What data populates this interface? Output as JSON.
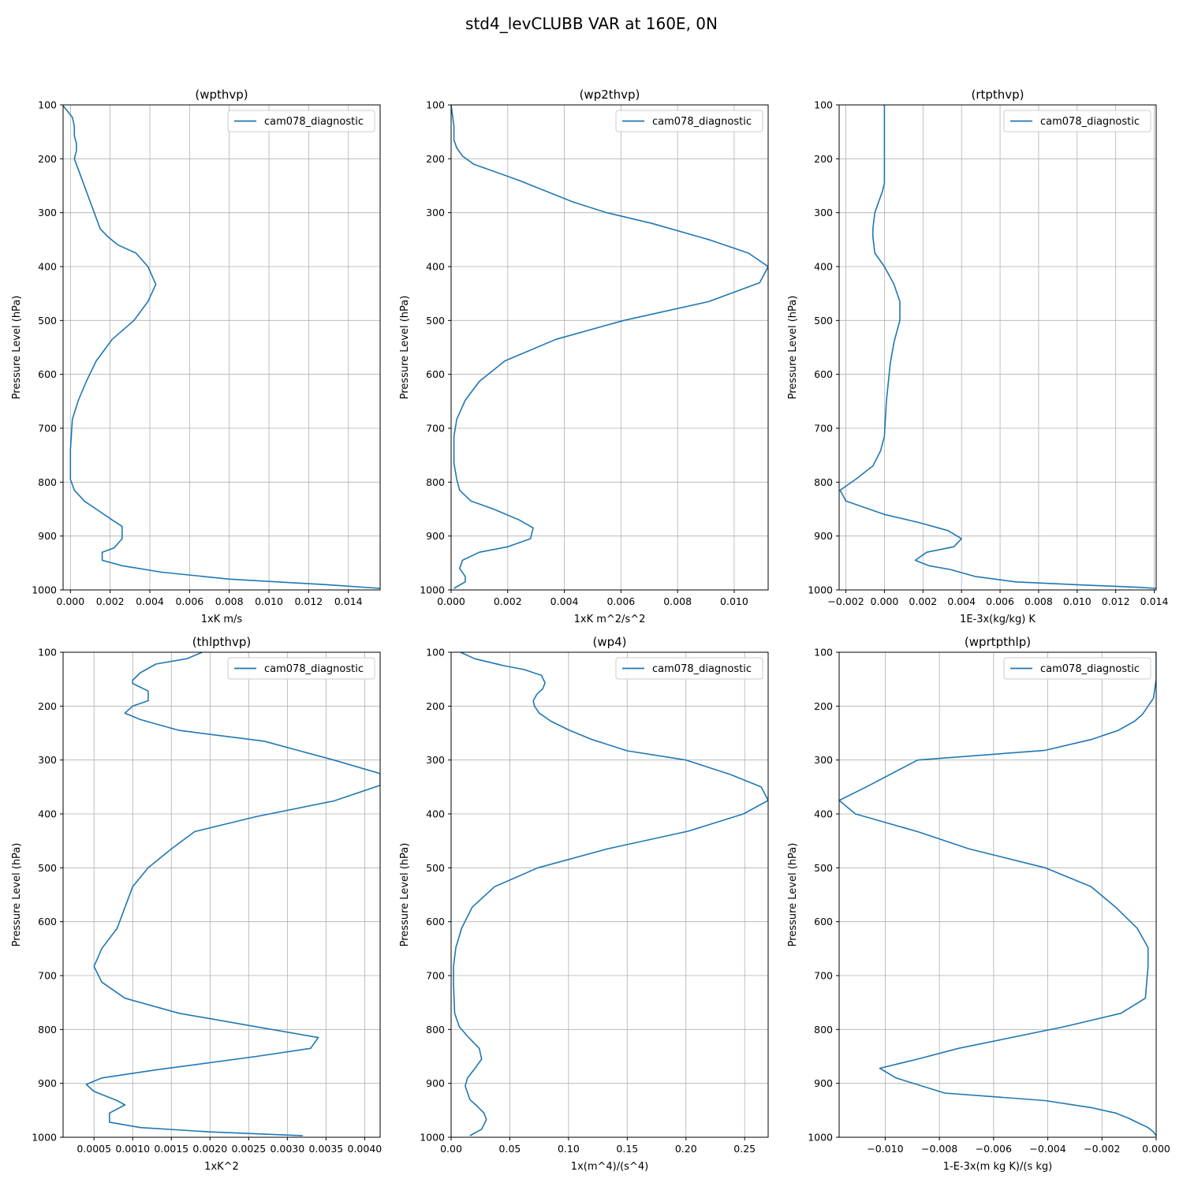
{
  "figure": {
    "title": "std4_levCLUBB VAR at 160E, 0N"
  },
  "chart_data": [
    {
      "type": "line",
      "title": "(wpthvp)",
      "xlabel": "1xK m/s",
      "ylabel": "Pressure Level (hPa)",
      "xlim": [
        -0.00037,
        0.0156
      ],
      "ylim": [
        1000,
        100
      ],
      "y_inverted": true,
      "grid": true,
      "legend": "top-right",
      "xticks": [
        0.0,
        0.002,
        0.004,
        0.006,
        0.008,
        0.01,
        0.012,
        0.014
      ],
      "xtick_labels": [
        "0.000",
        "0.002",
        "0.004",
        "0.006",
        "0.008",
        "0.010",
        "0.012",
        "0.014"
      ],
      "yticks": [
        100,
        200,
        300,
        400,
        500,
        600,
        700,
        800,
        900,
        1000
      ],
      "ytick_labels": [
        "100",
        "200",
        "300",
        "400",
        "500",
        "600",
        "700",
        "800",
        "900",
        "1000"
      ],
      "color": "#1f77b4",
      "series": [
        {
          "name": "cam078_diagnostic",
          "x": [
            -0.0004,
            0.0001,
            0.0002,
            0.0002,
            0.0003,
            0.0003,
            0.0002,
            0.0006,
            0.0012,
            0.0015,
            0.0019,
            0.0024,
            0.0033,
            0.0039,
            0.0043,
            0.0039,
            0.0032,
            0.0021,
            0.0013,
            0.0008,
            0.0004,
            0.0001,
            0.0,
            0.0,
            0.0,
            0.0002,
            0.0007,
            0.0021,
            0.0026,
            0.0026,
            0.0022,
            0.0016,
            0.0016,
            0.0026,
            0.0046,
            0.008,
            0.0128,
            0.0156
          ],
          "y": [
            100,
            123,
            140,
            158,
            172,
            185,
            200,
            240,
            300,
            330,
            345,
            360,
            375,
            400,
            433,
            465,
            500,
            535,
            575,
            613,
            648,
            683,
            740,
            770,
            795,
            815,
            835,
            870,
            882,
            905,
            922,
            930,
            945,
            955,
            967,
            980,
            990,
            997
          ]
        }
      ]
    },
    {
      "type": "line",
      "title": "(wp2thvp)",
      "xlabel": "1xK m^2/s^2",
      "ylabel": "Pressure Level (hPa)",
      "xlim": [
        0.0,
        0.0112
      ],
      "ylim": [
        1000,
        100
      ],
      "y_inverted": true,
      "grid": true,
      "legend": "top-right",
      "xticks": [
        0.0,
        0.002,
        0.004,
        0.006,
        0.008,
        0.01
      ],
      "xtick_labels": [
        "0.000",
        "0.002",
        "0.004",
        "0.006",
        "0.008",
        "0.010"
      ],
      "yticks": [
        100,
        200,
        300,
        400,
        500,
        600,
        700,
        800,
        900,
        1000
      ],
      "ytick_labels": [
        "100",
        "200",
        "300",
        "400",
        "500",
        "600",
        "700",
        "800",
        "900",
        "1000"
      ],
      "color": "#1f77b4",
      "series": [
        {
          "name": "cam078_diagnostic",
          "x": [
            0.0,
            0.0001,
            0.0001,
            0.0002,
            0.0004,
            0.0008,
            0.0024,
            0.0043,
            0.0055,
            0.0071,
            0.0091,
            0.0105,
            0.0112,
            0.0109,
            0.0091,
            0.0061,
            0.0037,
            0.0019,
            0.001,
            0.0005,
            0.0002,
            0.0001,
            0.0001,
            0.0002,
            0.0003,
            0.0007,
            0.0015,
            0.0024,
            0.0029,
            0.0028,
            0.002,
            0.001,
            0.0004,
            0.0003,
            0.0005,
            0.0005,
            0.0001
          ],
          "y": [
            100,
            140,
            165,
            180,
            195,
            210,
            240,
            280,
            300,
            320,
            350,
            375,
            400,
            430,
            465,
            500,
            535,
            575,
            613,
            648,
            683,
            715,
            765,
            795,
            815,
            835,
            850,
            870,
            885,
            905,
            920,
            930,
            945,
            960,
            975,
            985,
            997
          ]
        }
      ]
    },
    {
      "type": "line",
      "title": "(rtpthvp)",
      "xlabel": "1E-3x(kg/kg) K",
      "ylabel": "Pressure Level (hPa)",
      "xlim": [
        -0.00235,
        0.0141
      ],
      "ylim": [
        1000,
        100
      ],
      "y_inverted": true,
      "grid": true,
      "legend": "top-right",
      "xticks": [
        -0.002,
        0.0,
        0.002,
        0.004,
        0.006,
        0.008,
        0.01,
        0.012,
        0.014
      ],
      "xtick_labels": [
        "−0.002",
        "0.000",
        "0.002",
        "0.004",
        "0.006",
        "0.008",
        "0.010",
        "0.012",
        "0.014"
      ],
      "yticks": [
        100,
        200,
        300,
        400,
        500,
        600,
        700,
        800,
        900,
        1000
      ],
      "ytick_labels": [
        "100",
        "200",
        "300",
        "400",
        "500",
        "600",
        "700",
        "800",
        "900",
        "1000"
      ],
      "color": "#1f77b4",
      "series": [
        {
          "name": "cam078_diagnostic",
          "x": [
            0.0,
            0.0,
            0.0,
            -0.0001,
            -0.0005,
            -0.0006,
            -0.0006,
            -0.0005,
            0.0,
            0.0005,
            0.0008,
            0.0008,
            0.0005,
            0.0003,
            0.0001,
            0.0,
            -0.0002,
            -0.0006,
            -0.0015,
            -0.0023,
            -0.002,
            0.0,
            0.0018,
            0.0033,
            0.004,
            0.0036,
            0.0022,
            0.0016,
            0.0023,
            0.0034,
            0.0047,
            0.0068,
            0.0098,
            0.0131,
            0.0141
          ],
          "y": [
            100,
            200,
            245,
            260,
            300,
            330,
            345,
            375,
            400,
            433,
            465,
            500,
            540,
            580,
            650,
            715,
            742,
            770,
            795,
            815,
            835,
            860,
            875,
            890,
            905,
            920,
            930,
            945,
            955,
            962,
            975,
            985,
            990,
            995,
            997
          ]
        }
      ]
    },
    {
      "type": "line",
      "title": "(thlpthvp)",
      "xlabel": "1xK^2",
      "ylabel": "Pressure Level (hPa)",
      "xlim": [
        0.0001,
        0.0042
      ],
      "ylim": [
        1000,
        100
      ],
      "y_inverted": true,
      "grid": true,
      "legend": "top-right",
      "xticks": [
        0.0005,
        0.001,
        0.0015,
        0.002,
        0.0025,
        0.003,
        0.0035,
        0.004
      ],
      "xtick_labels": [
        "0.0005",
        "0.0010",
        "0.0015",
        "0.0020",
        "0.0025",
        "0.0030",
        "0.0035",
        "0.0040"
      ],
      "yticks": [
        100,
        200,
        300,
        400,
        500,
        600,
        700,
        800,
        900,
        1000
      ],
      "ytick_labels": [
        "100",
        "200",
        "300",
        "400",
        "500",
        "600",
        "700",
        "800",
        "900",
        "1000"
      ],
      "color": "#1f77b4",
      "series": [
        {
          "name": "cam078_diagnostic",
          "x": [
            0.0019,
            0.0017,
            0.0013,
            0.0011,
            0.001,
            0.001,
            0.0012,
            0.0012,
            0.001,
            0.0009,
            0.0011,
            0.0016,
            0.0027,
            0.0036,
            0.0042,
            0.0042,
            0.0036,
            0.0026,
            0.0018,
            0.0015,
            0.0012,
            0.001,
            0.0008,
            0.0006,
            0.0005,
            0.0006,
            0.0009,
            0.0016,
            0.0026,
            0.0034,
            0.0033,
            0.0026,
            0.0013,
            0.0006,
            0.0004,
            0.0005,
            0.0008,
            0.0009,
            0.0007,
            0.0007,
            0.0011,
            0.002,
            0.0032
          ],
          "y": [
            100,
            112,
            122,
            138,
            152,
            158,
            172,
            190,
            200,
            213,
            225,
            245,
            265,
            300,
            325,
            347,
            376,
            405,
            433,
            465,
            500,
            535,
            612,
            650,
            683,
            712,
            742,
            770,
            795,
            815,
            835,
            850,
            875,
            890,
            902,
            915,
            932,
            940,
            955,
            972,
            982,
            990,
            997
          ]
        }
      ]
    },
    {
      "type": "line",
      "title": "(wp4)",
      "xlabel": "1x(m^4)/(s^4)",
      "ylabel": "Pressure Level (hPa)",
      "xlim": [
        0.0,
        0.27
      ],
      "ylim": [
        1000,
        100
      ],
      "y_inverted": true,
      "grid": true,
      "legend": "top-right",
      "xticks": [
        0.0,
        0.05,
        0.1,
        0.15,
        0.2,
        0.25
      ],
      "xtick_labels": [
        "0.00",
        "0.05",
        "0.10",
        "0.15",
        "0.20",
        "0.25"
      ],
      "yticks": [
        100,
        200,
        300,
        400,
        500,
        600,
        700,
        800,
        900,
        1000
      ],
      "ytick_labels": [
        "100",
        "200",
        "300",
        "400",
        "500",
        "600",
        "700",
        "800",
        "900",
        "1000"
      ],
      "color": "#1f77b4",
      "series": [
        {
          "name": "cam078_diagnostic",
          "x": [
            0.008,
            0.02,
            0.045,
            0.062,
            0.077,
            0.08,
            0.078,
            0.073,
            0.07,
            0.071,
            0.075,
            0.085,
            0.101,
            0.12,
            0.15,
            0.2,
            0.238,
            0.264,
            0.27,
            0.249,
            0.202,
            0.133,
            0.074,
            0.037,
            0.018,
            0.009,
            0.004,
            0.002,
            0.002,
            0.003,
            0.007,
            0.015,
            0.024,
            0.026,
            0.021,
            0.014,
            0.012,
            0.016,
            0.022,
            0.028,
            0.03,
            0.026,
            0.016
          ],
          "y": [
            100,
            112,
            125,
            132,
            143,
            157,
            168,
            178,
            190,
            200,
            213,
            228,
            245,
            262,
            283,
            300,
            327,
            350,
            375,
            400,
            432,
            465,
            500,
            535,
            573,
            612,
            648,
            683,
            715,
            770,
            795,
            815,
            835,
            855,
            870,
            890,
            905,
            930,
            942,
            955,
            967,
            985,
            997
          ]
        }
      ]
    },
    {
      "type": "line",
      "title": "(wprtpthlp)",
      "xlabel": "1-E-3x(m kg K)/(s kg)",
      "ylabel": "Pressure Level (hPa)",
      "xlim": [
        -0.0117,
        0.0
      ],
      "ylim": [
        1000,
        100
      ],
      "y_inverted": true,
      "grid": true,
      "legend": "top-right",
      "xticks": [
        -0.01,
        -0.008,
        -0.006,
        -0.004,
        -0.002,
        0.0
      ],
      "xtick_labels": [
        "−0.010",
        "−0.008",
        "−0.006",
        "−0.004",
        "−0.002",
        "0.000"
      ],
      "yticks": [
        100,
        200,
        300,
        400,
        500,
        600,
        700,
        800,
        900,
        1000
      ],
      "ytick_labels": [
        "100",
        "200",
        "300",
        "400",
        "500",
        "600",
        "700",
        "800",
        "900",
        "1000"
      ],
      "color": "#1f77b4",
      "series": [
        {
          "name": "cam078_diagnostic",
          "x": [
            0.0,
            0.0,
            -0.0001,
            -0.0003,
            -0.0005,
            -0.0008,
            -0.0014,
            -0.0024,
            -0.0041,
            -0.0088,
            -0.0107,
            -0.0117,
            -0.0111,
            -0.0088,
            -0.0069,
            -0.0041,
            -0.0024,
            -0.0015,
            -0.0007,
            -0.0003,
            -0.0003,
            -0.0004,
            -0.0013,
            -0.0034,
            -0.0073,
            -0.0088,
            -0.0102,
            -0.0096,
            -0.0078,
            -0.0041,
            -0.0024,
            -0.0015,
            -0.001,
            -0.0006,
            -0.0003,
            -0.0001,
            0.0
          ],
          "y": [
            100,
            150,
            185,
            200,
            215,
            228,
            245,
            262,
            282,
            300,
            350,
            375,
            400,
            433,
            465,
            500,
            535,
            573,
            612,
            648,
            683,
            742,
            770,
            795,
            835,
            855,
            872,
            890,
            918,
            932,
            945,
            955,
            965,
            975,
            982,
            990,
            997
          ]
        }
      ]
    }
  ]
}
